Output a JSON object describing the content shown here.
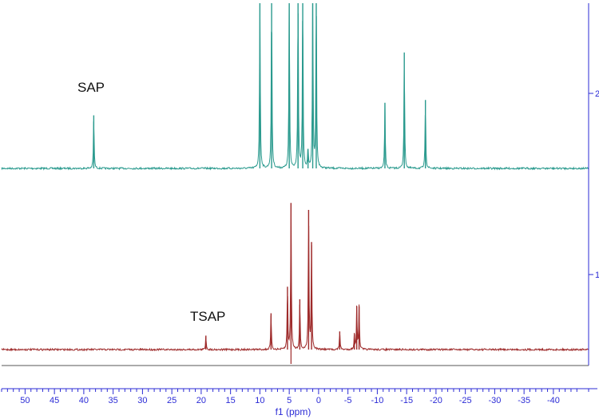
{
  "chart_data": {
    "type": "line",
    "title": "",
    "xlabel": "f1 (ppm)",
    "ylabel": "",
    "xlim": [
      54,
      -46
    ],
    "x_reversed": true,
    "x_ticks": [
      50,
      45,
      40,
      35,
      30,
      25,
      20,
      15,
      10,
      5,
      0,
      -5,
      -10,
      -15,
      -20,
      -25,
      -30,
      -35,
      -40
    ],
    "x_tick_labels": [
      "50",
      "45",
      "40",
      "35",
      "30",
      "25",
      "20",
      "15",
      "10",
      "5",
      "0",
      "-5",
      "-10",
      "-15",
      "-20",
      "-25",
      "-30",
      "-35",
      "-40"
    ],
    "right_axis_labels": [
      "2",
      "1"
    ],
    "grid": false,
    "annotations": [
      "SAP",
      "TSAP"
    ],
    "series": [
      {
        "color": "#2a9a8e",
        "stack_index": 2,
        "peaks": [
          {
            "x": 38.3,
            "h": 0.38
          },
          {
            "x": 10.0,
            "h": 1.3
          },
          {
            "x": 8.0,
            "h": 1.3
          },
          {
            "x": 5.0,
            "h": 1.3
          },
          {
            "x": 3.5,
            "h": 1.3
          },
          {
            "x": 2.7,
            "h": 1.3
          },
          {
            "x": 1.8,
            "h": 0.14
          },
          {
            "x": 1.0,
            "h": 1.3
          },
          {
            "x": 0.4,
            "h": 1.3
          },
          {
            "x": -11.3,
            "h": 0.47
          },
          {
            "x": -14.6,
            "h": 0.83
          },
          {
            "x": -18.2,
            "h": 0.49
          }
        ]
      },
      {
        "color": "#9e2a2a",
        "stack_index": 1,
        "peaks": [
          {
            "x": 19.2,
            "h": 0.1
          },
          {
            "x": 8.1,
            "h": 0.26
          },
          {
            "x": 5.3,
            "h": 0.45
          },
          {
            "x": 4.7,
            "h": 1.05
          },
          {
            "x": 3.2,
            "h": 0.36
          },
          {
            "x": 1.7,
            "h": 1.0
          },
          {
            "x": 1.2,
            "h": 0.77
          },
          {
            "x": -3.6,
            "h": 0.13
          },
          {
            "x": -6.1,
            "h": 0.11
          },
          {
            "x": -6.5,
            "h": 0.31
          },
          {
            "x": -6.9,
            "h": 0.31
          }
        ]
      }
    ]
  }
}
